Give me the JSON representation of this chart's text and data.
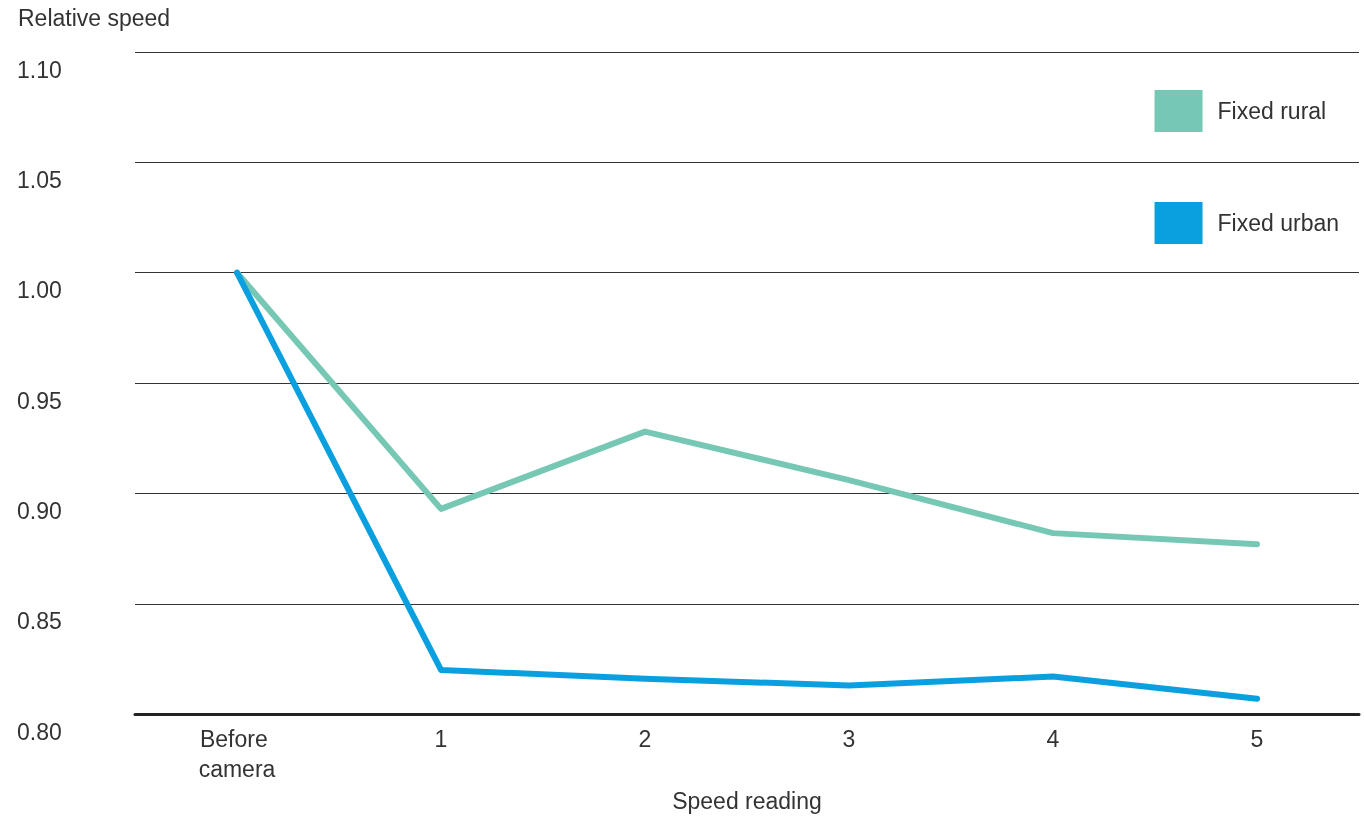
{
  "chart_data": {
    "type": "line",
    "xlabel": "Speed reading",
    "ylabel": "Relative speed",
    "categories": [
      "Before camera",
      "1",
      "2",
      "3",
      "4",
      "5"
    ],
    "series": [
      {
        "name": "Fixed rural",
        "color": "#76c8b4",
        "values": [
          1.0,
          0.893,
          0.928,
          0.906,
          0.882,
          0.877
        ]
      },
      {
        "name": "Fixed urban",
        "color": "#0aa0e0",
        "values": [
          1.0,
          0.82,
          0.816,
          0.813,
          0.817,
          0.807
        ]
      }
    ],
    "ylim": [
      0.8,
      1.1
    ],
    "yticks": [
      {
        "value": 0.8,
        "label": "0.80"
      },
      0.85,
      {
        "value": 0.9,
        "label": "0.90"
      },
      0.95,
      {
        "value": 1.0,
        "label": "1.00"
      },
      1.05,
      {
        "value": 1.1,
        "label": "1.10"
      }
    ],
    "grid": "y",
    "legend": "top right",
    "marker": "none",
    "line_style": "solid"
  }
}
